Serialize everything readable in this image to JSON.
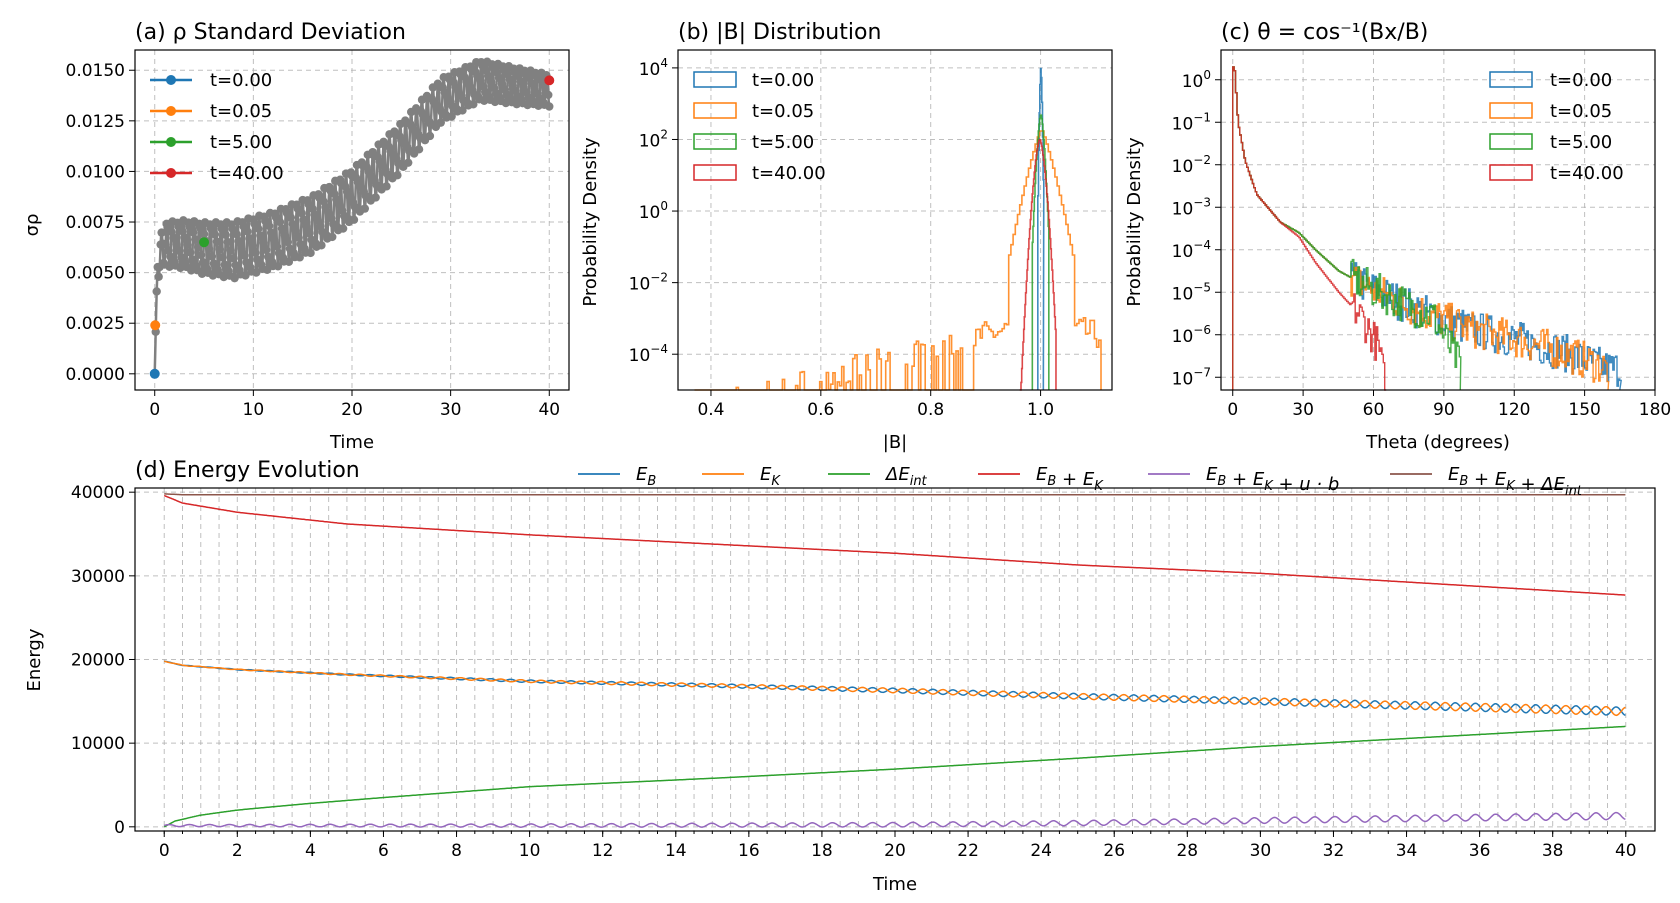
{
  "chart_data": [
    {
      "id": "a",
      "type": "line",
      "title": "(a) ρ Standard Deviation",
      "xlabel": "Time",
      "ylabel": "σρ",
      "xlim": [
        -2,
        42
      ],
      "ylim": [
        -0.0008,
        0.016
      ],
      "xticks": [
        0,
        10,
        20,
        30,
        40
      ],
      "yticks": [
        0,
        0.0025,
        0.005,
        0.0075,
        0.01,
        0.0125,
        0.015
      ],
      "ytick_labels": [
        "0.0000",
        "0.0025",
        "0.0050",
        "0.0075",
        "0.0100",
        "0.0125",
        "0.0150"
      ],
      "series_color": "#808080",
      "trend": {
        "t": [
          0,
          0.3,
          1,
          3,
          5,
          8,
          12,
          16,
          20,
          25,
          29,
          33,
          37,
          40
        ],
        "mid": [
          0.0,
          0.0055,
          0.0064,
          0.0064,
          0.0062,
          0.0061,
          0.0066,
          0.0074,
          0.0088,
          0.0112,
          0.0135,
          0.0145,
          0.0142,
          0.014
        ],
        "amp": [
          0.0,
          0.0008,
          0.0011,
          0.0012,
          0.0013,
          0.0014,
          0.0014,
          0.0014,
          0.0013,
          0.0012,
          0.0011,
          0.001,
          0.0009,
          0.0008
        ]
      },
      "markers": [
        {
          "label": "t=0.00",
          "t": 0.0,
          "value": 0.0,
          "color": "#1f77b4"
        },
        {
          "label": "t=0.05",
          "t": 0.05,
          "value": 0.0024,
          "color": "#ff7f0e"
        },
        {
          "label": "t=5.00",
          "t": 5.0,
          "value": 0.0065,
          "color": "#2ca02c"
        },
        {
          "label": "t=40.00",
          "t": 40.0,
          "value": 0.0145,
          "color": "#d62728"
        }
      ],
      "legend_position": "upper-left"
    },
    {
      "id": "b",
      "type": "histogram",
      "title": "(b) |B| Distribution",
      "xlabel": "|B|",
      "ylabel": "Probability Density",
      "yscale": "log",
      "xlim": [
        0.34,
        1.13
      ],
      "ylim_exp": [
        -5,
        4.5
      ],
      "xticks": [
        0.4,
        0.6,
        0.8,
        1.0
      ],
      "xtick_labels": [
        "0.4",
        "0.6",
        "0.8",
        "1.0"
      ],
      "ytick_exps": [
        -4,
        -2,
        0,
        2,
        4
      ],
      "series": [
        {
          "label": "t=0.00",
          "color": "#1f77b4",
          "center": 1.0,
          "width": 0.004,
          "peak_exp": 4.0,
          "min": 0.995,
          "max": 1.005
        },
        {
          "label": "t=0.05",
          "color": "#ff7f0e",
          "center": 1.0,
          "width": 0.03,
          "peak_exp": 2.3,
          "min": 0.37,
          "max": 1.11
        },
        {
          "label": "t=5.00",
          "color": "#2ca02c",
          "center": 1.0,
          "width": 0.012,
          "peak_exp": 2.7,
          "min": 0.985,
          "max": 1.015
        },
        {
          "label": "t=40.00",
          "color": "#d62728",
          "center": 0.998,
          "width": 0.018,
          "peak_exp": 2.0,
          "min": 0.962,
          "max": 1.028
        }
      ],
      "legend_position": "upper-left"
    },
    {
      "id": "c",
      "type": "histogram",
      "title": "(c) θ = cos⁻¹(Bx/B)",
      "xlabel": "Theta (degrees)",
      "ylabel": "Probability Density",
      "yscale": "log",
      "xlim": [
        -5,
        180
      ],
      "ylim_exp": [
        -7.3,
        0.7
      ],
      "xticks": [
        0,
        30,
        60,
        90,
        120,
        150,
        180
      ],
      "ytick_exps": [
        -7,
        -6,
        -5,
        -4,
        -3,
        -2,
        -1,
        0
      ],
      "ytick_labels": [
        "10⁻⁷",
        "10⁻⁶",
        "10⁻⁵",
        "10⁻⁴",
        "10⁻³",
        "10⁻²",
        "10⁻¹",
        "10⁰"
      ],
      "series": [
        {
          "label": "t=0.00",
          "color": "#1f77b4",
          "max_theta": 165
        },
        {
          "label": "t=0.05",
          "color": "#ff7f0e",
          "max_theta": 160
        },
        {
          "label": "t=5.00",
          "color": "#2ca02c",
          "max_theta": 97
        },
        {
          "label": "t=40.00",
          "color": "#d62728",
          "max_theta": 65
        }
      ],
      "profile_main": {
        "theta": [
          0.5,
          2,
          5,
          10,
          20,
          28,
          35,
          45,
          60,
          80,
          100,
          120,
          140,
          160
        ],
        "log_density": [
          0.3,
          -1.0,
          -1.9,
          -2.7,
          -3.35,
          -3.6,
          -4.0,
          -4.5,
          -4.95,
          -5.45,
          -5.85,
          -6.1,
          -6.4,
          -6.8
        ]
      },
      "profile_t40": {
        "theta": [
          0.5,
          2,
          5,
          10,
          20,
          28,
          35,
          45,
          55,
          62,
          65
        ],
        "log_density": [
          0.3,
          -1.0,
          -1.9,
          -2.7,
          -3.35,
          -3.7,
          -4.3,
          -5.0,
          -5.6,
          -6.3,
          -7.3
        ]
      },
      "legend_position": "upper-right"
    },
    {
      "id": "d",
      "type": "line",
      "title": "(d) Energy Evolution",
      "xlabel": "Time",
      "ylabel": "Energy",
      "xlim": [
        -0.8,
        40.8
      ],
      "ylim": [
        -500,
        40500
      ],
      "xticks": [
        0,
        2,
        4,
        6,
        8,
        10,
        12,
        14,
        16,
        18,
        20,
        22,
        24,
        26,
        28,
        30,
        32,
        34,
        36,
        38,
        40
      ],
      "yticks": [
        0,
        10000,
        20000,
        30000,
        40000
      ],
      "series": [
        {
          "name": "E_B",
          "color": "#1f77b4",
          "t": [
            0,
            0.5,
            2,
            5,
            10,
            15,
            20,
            25,
            30,
            35,
            40
          ],
          "v": [
            19800,
            19300,
            18800,
            18200,
            17400,
            16900,
            16300,
            15600,
            15000,
            14400,
            13800
          ],
          "osc": 500,
          "phase": 0
        },
        {
          "name": "E_K",
          "color": "#ff7f0e",
          "t": [
            0,
            0.5,
            2,
            5,
            10,
            15,
            20,
            25,
            30,
            35,
            40
          ],
          "v": [
            19800,
            19300,
            18800,
            18200,
            17400,
            16900,
            16300,
            15600,
            15000,
            14400,
            13800
          ],
          "osc": 500,
          "phase": 3.14159
        },
        {
          "name": "ΔE_int",
          "color": "#2ca02c",
          "t": [
            0,
            0.3,
            1,
            2,
            4,
            6,
            10,
            15,
            20,
            25,
            30,
            35,
            40
          ],
          "v": [
            0,
            700,
            1400,
            2000,
            2800,
            3500,
            4800,
            5800,
            6900,
            8200,
            9600,
            10800,
            12000
          ],
          "osc": 0,
          "phase": 0
        },
        {
          "name": "E_B + E_K",
          "color": "#d62728",
          "t": [
            0,
            0.5,
            2,
            5,
            10,
            15,
            20,
            25,
            30,
            35,
            40
          ],
          "v": [
            39600,
            38700,
            37600,
            36200,
            34900,
            33800,
            32700,
            31300,
            30300,
            29000,
            27700
          ],
          "osc": 0,
          "phase": 0
        },
        {
          "name": "E_B + E_K + u·b",
          "color": "#9467bd",
          "t": [
            0,
            10,
            20,
            25,
            30,
            35,
            40
          ],
          "v": [
            150,
            150,
            250,
            450,
            750,
            1050,
            1300
          ],
          "osc": 300,
          "phase": 0
        },
        {
          "name": "E_B + E_K + ΔE_int",
          "color": "#8c564b",
          "t": [
            0,
            0.5,
            40
          ],
          "v": [
            39800,
            39700,
            39700
          ],
          "osc": 0,
          "phase": 0
        }
      ],
      "legend_labels": [
        "E",
        "E",
        "ΔE",
        "E + E",
        "E + E + u · b",
        "E + E + ΔE"
      ],
      "legend_subs": [
        [
          "B"
        ],
        [
          "K"
        ],
        [
          "int"
        ],
        [
          "B",
          "K"
        ],
        [
          "B",
          "K"
        ],
        [
          "B",
          "K",
          "int"
        ]
      ],
      "legend_position": "top"
    }
  ]
}
